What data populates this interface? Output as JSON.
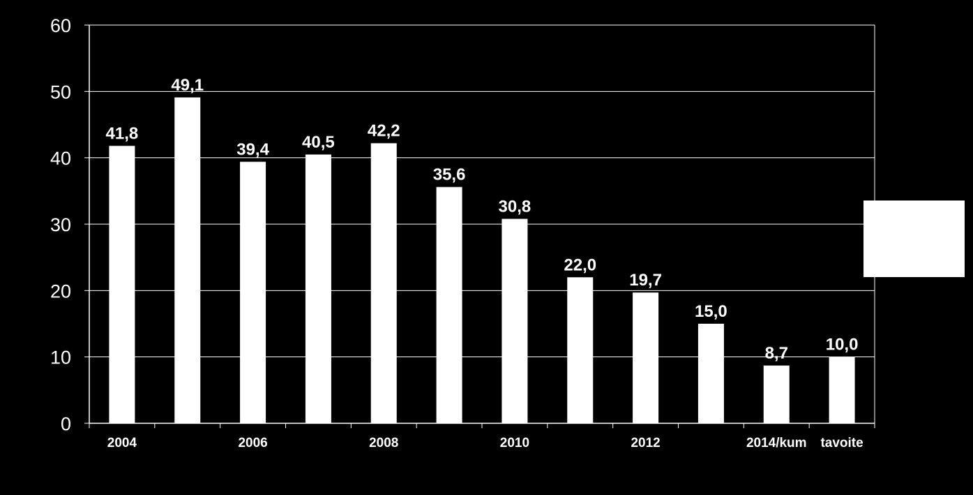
{
  "chart_data": {
    "type": "bar",
    "categories": [
      "2004",
      "",
      "2006",
      "",
      "2008",
      "",
      "2010",
      "",
      "2012",
      "",
      "2014/kum",
      "tavoite"
    ],
    "series": [
      {
        "values": [
          41.8,
          49.1,
          39.4,
          40.5,
          42.2,
          35.6,
          30.8,
          22.0,
          19.7,
          15.0,
          8.7,
          10.0
        ],
        "labels": [
          "41,8",
          "49,1",
          "39,4",
          "40,5",
          "42,2",
          "35,6",
          "30,8",
          "22,0",
          "19,7",
          "15,0",
          "8,7",
          "10,0"
        ],
        "color": "#ffffff"
      }
    ],
    "ylim": [
      0,
      60
    ],
    "yticks": [
      0,
      10,
      20,
      30,
      40,
      50,
      60
    ],
    "grid": true,
    "legend": "right",
    "colors": {
      "background": "#000000",
      "bars": "#ffffff",
      "text": "#ffffff",
      "grid": "#ffffff"
    }
  }
}
